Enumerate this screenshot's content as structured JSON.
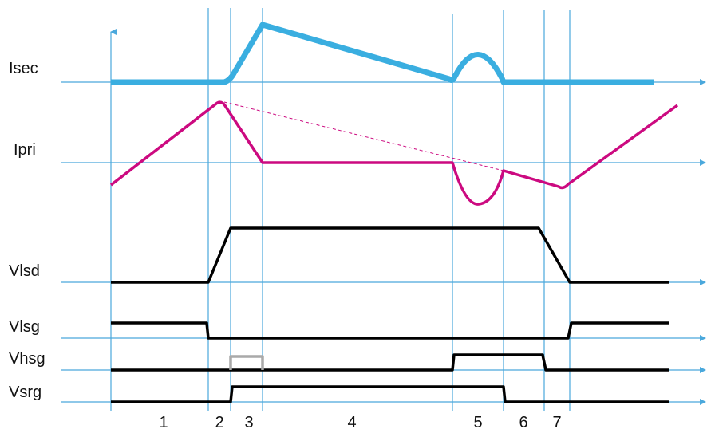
{
  "signals": [
    {
      "name": "Isec"
    },
    {
      "name": "Ipri"
    },
    {
      "name": "Vlsd"
    },
    {
      "name": "Vlsg"
    },
    {
      "name": "Vhsg"
    },
    {
      "name": "Vsrg"
    }
  ],
  "phases": [
    "1",
    "2",
    "3",
    "4",
    "5",
    "6",
    "7"
  ],
  "colors": {
    "grid": "#4aa8dc",
    "isec": "#3aaee0",
    "ipri": "#cc0a80",
    "digital": "#000000",
    "hsg_pulse": "#a9a9a9"
  }
}
